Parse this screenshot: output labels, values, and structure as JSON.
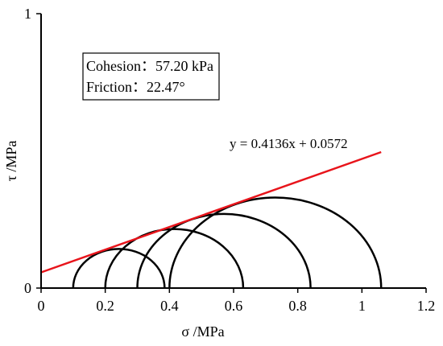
{
  "chart_data": {
    "type": "scatter",
    "title": "",
    "xlabel": "σ /MPa",
    "ylabel": "τ /MPa",
    "xlim": [
      0,
      1.2
    ],
    "ylim": [
      0,
      1
    ],
    "x_ticks": [
      "0",
      "0.2",
      "0.4",
      "0.6",
      "0.8",
      "1",
      "1.2"
    ],
    "y_ticks": [
      "0",
      "1"
    ],
    "grid": false,
    "legend": "none",
    "annotation_box": {
      "cohesion": "Cohesion：57.20 kPa",
      "friction": "Friction：22.47°"
    },
    "trendline": {
      "label": "y = 0.4136x + 0.0572",
      "slope": 0.4136,
      "intercept": 0.0572,
      "x_range": [
        0,
        1.06
      ],
      "color": "#e8141b"
    },
    "mohr_circles": [
      {
        "sigma3": 0.1,
        "sigma1": 0.385
      },
      {
        "sigma3": 0.2,
        "sigma1": 0.63
      },
      {
        "sigma3": 0.3,
        "sigma1": 0.84
      },
      {
        "sigma3": 0.4,
        "sigma1": 1.06
      }
    ],
    "circle_color": "#000000"
  }
}
